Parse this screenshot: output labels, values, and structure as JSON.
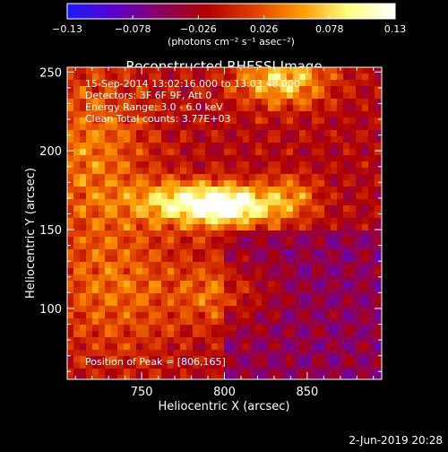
{
  "colorbar": {
    "ticks": [
      {
        "value": -0.13,
        "label": "−0.13"
      },
      {
        "value": -0.078,
        "label": "−0.078"
      },
      {
        "value": -0.026,
        "label": "−0.026"
      },
      {
        "value": 0.026,
        "label": "0.026"
      },
      {
        "value": 0.078,
        "label": "0.078"
      },
      {
        "value": 0.13,
        "label": "0.13"
      }
    ],
    "range": [
      -0.13,
      0.13
    ],
    "units_label": "(photons cm⁻² s⁻¹ asec⁻²)",
    "colors": [
      "#1a1aff",
      "#5a00cc",
      "#8a0060",
      "#b00000",
      "#e04000",
      "#ff9a00",
      "#ffff80",
      "#ffffff"
    ]
  },
  "chart_data": {
    "type": "heatmap",
    "title": "Reconstructed RHESSI Image",
    "xlabel": "Heliocentric X (arcsec)",
    "ylabel": "Heliocentric Y (arcsec)",
    "xlim": [
      705,
      895
    ],
    "ylim": [
      55,
      253
    ],
    "xticks": [
      750,
      800,
      850
    ],
    "yticks": [
      100,
      150,
      200,
      250
    ],
    "annotations": [
      "15-Sep-2014 13:02:16.000 to 13:03:48.000",
      "Detectors: 3F 6F 9F, Att 0",
      "Energy Range: 3.0 - 6.0 keV",
      "Clean     Total counts: 3.77E+03"
    ],
    "peak_text": "Position of Peak = [806,165]",
    "peak": [
      806,
      165
    ],
    "sources": [
      {
        "x": 806,
        "y": 165,
        "amp": 0.13,
        "sx": 18,
        "sy": 9
      },
      {
        "x": 775,
        "y": 167,
        "amp": 0.1,
        "sx": 22,
        "sy": 10
      },
      {
        "x": 840,
        "y": 170,
        "amp": 0.06,
        "sx": 12,
        "sy": 10
      },
      {
        "x": 835,
        "y": 245,
        "amp": 0.1,
        "sx": 20,
        "sy": 12
      },
      {
        "x": 720,
        "y": 200,
        "amp": 0.06,
        "sx": 25,
        "sy": 40
      },
      {
        "x": 735,
        "y": 110,
        "amp": 0.05,
        "sx": 30,
        "sy": 30
      },
      {
        "x": 800,
        "y": 110,
        "amp": 0.05,
        "sx": 20,
        "sy": 15
      }
    ]
  },
  "footer": {
    "date": "2-Jun-2019 20:28"
  }
}
